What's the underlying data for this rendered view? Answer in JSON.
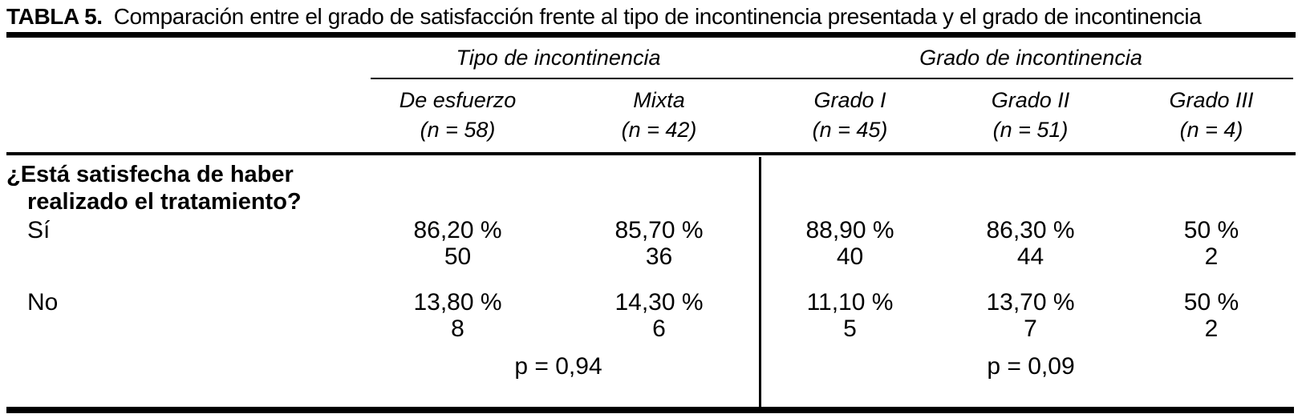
{
  "table": {
    "title_label": "TABLA 5.",
    "title_text": "Comparación entre el grado de satisfacción frente al tipo de incontinencia presentada y el grado de incontinencia",
    "column_groups": [
      {
        "label": "Tipo de incontinencia",
        "columns": [
          {
            "name": "De esfuerzo",
            "n": "(n = 58)"
          },
          {
            "name": "Mixta",
            "n": "(n = 42)"
          }
        ]
      },
      {
        "label": "Grado de incontinencia",
        "columns": [
          {
            "name": "Grado I",
            "n": "(n = 45)"
          },
          {
            "name": "Grado II",
            "n": "(n = 51)"
          },
          {
            "name": "Grado III",
            "n": "(n = 4)"
          }
        ]
      }
    ],
    "question": {
      "line1": "¿Está satisfecha de haber",
      "line2": "realizado el tratamiento?"
    },
    "rows": [
      {
        "label": "Sí",
        "values": [
          {
            "pct": "86,20 %",
            "count": "50"
          },
          {
            "pct": "85,70 %",
            "count": "36"
          },
          {
            "pct": "88,90 %",
            "count": "40"
          },
          {
            "pct": "86,30 %",
            "count": "44"
          },
          {
            "pct": "50 %",
            "count": "2"
          }
        ]
      },
      {
        "label": "No",
        "values": [
          {
            "pct": "13,80 %",
            "count": "8"
          },
          {
            "pct": "14,30 %",
            "count": "6"
          },
          {
            "pct": "11,10 %",
            "count": "5"
          },
          {
            "pct": "13,70 %",
            "count": "7"
          },
          {
            "pct": "50 %",
            "count": "2"
          }
        ]
      }
    ],
    "p_values": [
      {
        "label": "p = 0,94"
      },
      {
        "label": "p = 0,09"
      }
    ]
  },
  "colors": {
    "text": "#000000",
    "background": "#ffffff",
    "rule": "#000000"
  },
  "chart_data": {
    "type": "table",
    "title": "TABLA 5. Comparación entre el grado de satisfacción frente al tipo de incontinencia presentada y el grado de incontinencia",
    "column_groups": [
      "Tipo de incontinencia",
      "Grado de incontinencia"
    ],
    "columns": [
      "De esfuerzo (n = 58)",
      "Mixta (n = 42)",
      "Grado I (n = 45)",
      "Grado II (n = 51)",
      "Grado III (n = 4)"
    ],
    "question": "¿Está satisfecha de haber realizado el tratamiento?",
    "rows": [
      {
        "label": "Sí",
        "percent": [
          86.2,
          85.7,
          88.9,
          86.3,
          50
        ],
        "counts": [
          50,
          36,
          40,
          44,
          2
        ]
      },
      {
        "label": "No",
        "percent": [
          13.8,
          14.3,
          11.1,
          13.7,
          50
        ],
        "counts": [
          8,
          6,
          5,
          7,
          2
        ]
      }
    ],
    "p_values": {
      "Tipo de incontinencia": 0.94,
      "Grado de incontinencia": 0.09
    }
  }
}
